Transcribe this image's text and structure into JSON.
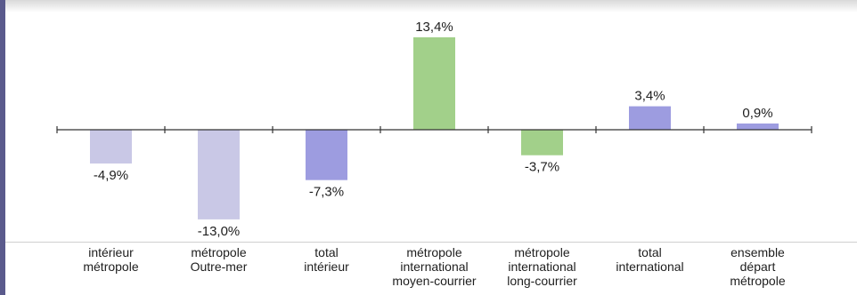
{
  "colors": {
    "bar_lavender": "#c9c8e6",
    "bar_blue": "#9d9ce0",
    "bar_green": "#a2d08a",
    "axis": "#333333",
    "text": "#1e1e1e"
  },
  "chart_data": {
    "type": "bar",
    "title": "",
    "xlabel": "",
    "ylabel": "",
    "categories": [
      "intérieur\nmétropole",
      "métropole\nOutre-mer",
      "total\nintérieur",
      "métropole\ninternational\nmoyen-courrier",
      "métropole\ninternational\nlong-courrier",
      "total\ninternational",
      "ensemble\ndépart\nmétropole"
    ],
    "values": [
      -4.9,
      -13.0,
      -7.3,
      13.4,
      -3.7,
      3.4,
      0.9
    ],
    "value_labels": [
      "-4,9%",
      "-13,0%",
      "-7,3%",
      "13,4%",
      "-3,7%",
      "3,4%",
      "0,9%"
    ],
    "bar_colors": [
      "lavender",
      "lavender",
      "blue",
      "green",
      "green",
      "blue",
      "blue"
    ],
    "unit": "%",
    "ylim": [
      -13.0,
      13.4
    ],
    "grid": false,
    "legend": "none"
  }
}
